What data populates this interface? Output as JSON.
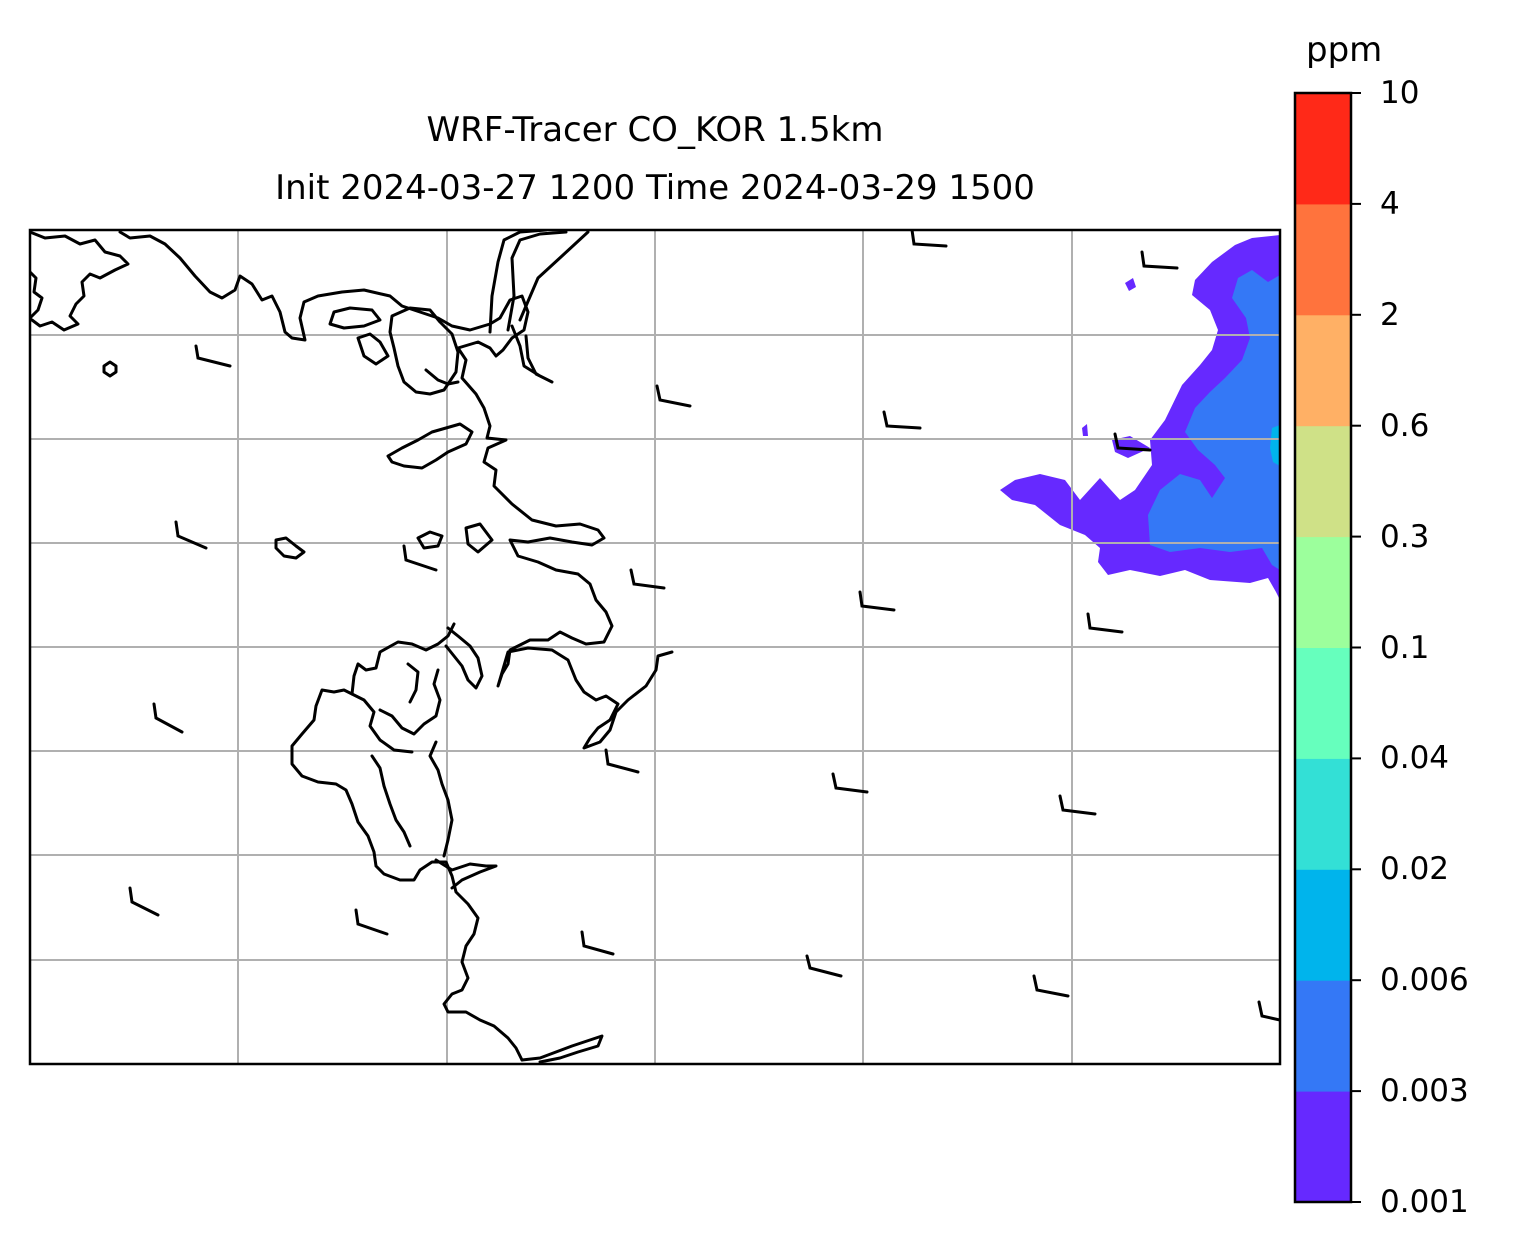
{
  "title_line1": "WRF-Tracer CO_KOR 1.5km",
  "title_line2": "Init 2024-03-27 1200 Time 2024-03-29 1500",
  "colorbar": {
    "units": "ppm",
    "levels": [
      "0.001",
      "0.003",
      "0.006",
      "0.02",
      "0.04",
      "0.1",
      "0.3",
      "0.6",
      "2",
      "4",
      "10"
    ],
    "colors": [
      "#6629ff",
      "#3478f6",
      "#00b4ec",
      "#33e0d6",
      "#66ffbd",
      "#9cff9c",
      "#cfe187",
      "#ffb065",
      "#ff733d",
      "#ff2918"
    ]
  },
  "map": {
    "gridlines": "on",
    "coastline_color": "#000000",
    "wind_barbs": "calm-to-light westerly flow",
    "tracer_plume": "eastern edge, 0.001–0.02 ppm"
  }
}
